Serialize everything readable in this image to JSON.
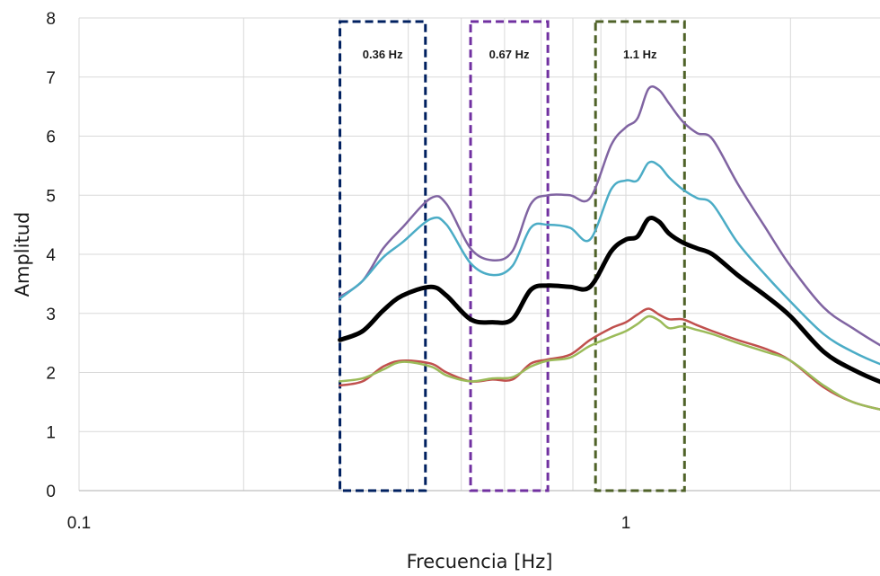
{
  "chart_data": {
    "type": "line",
    "xlabel": "Frecuencia [Hz]",
    "ylabel": "Amplitud",
    "xscale": "log",
    "xlim": [
      0.1,
      3.3
    ],
    "ylim": [
      0,
      8
    ],
    "y_ticks": [
      "0",
      "1",
      "2",
      "3",
      "4",
      "5",
      "6",
      "7",
      "8"
    ],
    "x_tick_labels": [
      {
        "value": 0.1,
        "label": "0.1"
      },
      {
        "value": 1,
        "label": "1"
      }
    ],
    "grid": true,
    "legend": "none",
    "series": [
      {
        "color": "#8064a2",
        "width": 2.5,
        "x": [
          0.3,
          0.33,
          0.36,
          0.39,
          0.44,
          0.47,
          0.52,
          0.57,
          0.62,
          0.67,
          0.72,
          0.79,
          0.86,
          0.94,
          1.0,
          1.05,
          1.1,
          1.15,
          1.2,
          1.27,
          1.35,
          1.44,
          1.6,
          1.8,
          2.0,
          2.3,
          2.6,
          3.0,
          3.3
        ],
        "y": [
          3.28,
          3.55,
          4.1,
          4.45,
          4.95,
          4.85,
          4.1,
          3.9,
          4.05,
          4.85,
          5.0,
          5.0,
          4.95,
          5.85,
          6.15,
          6.3,
          6.8,
          6.78,
          6.55,
          6.25,
          6.05,
          5.95,
          5.2,
          4.45,
          3.8,
          3.1,
          2.75,
          2.4,
          2.25
        ]
      },
      {
        "color": "#4bacc6",
        "width": 2.5,
        "x": [
          0.3,
          0.33,
          0.36,
          0.39,
          0.44,
          0.47,
          0.52,
          0.57,
          0.62,
          0.67,
          0.72,
          0.79,
          0.86,
          0.94,
          1.0,
          1.05,
          1.1,
          1.15,
          1.2,
          1.27,
          1.35,
          1.44,
          1.6,
          1.8,
          2.0,
          2.3,
          2.6,
          3.0,
          3.3
        ],
        "y": [
          3.25,
          3.55,
          3.95,
          4.2,
          4.6,
          4.5,
          3.85,
          3.65,
          3.8,
          4.45,
          4.5,
          4.45,
          4.25,
          5.1,
          5.25,
          5.25,
          5.55,
          5.5,
          5.3,
          5.1,
          4.95,
          4.85,
          4.2,
          3.65,
          3.2,
          2.65,
          2.35,
          2.1,
          2.0
        ]
      },
      {
        "color": "#000000",
        "width": 5,
        "x": [
          0.3,
          0.33,
          0.36,
          0.39,
          0.44,
          0.47,
          0.52,
          0.57,
          0.62,
          0.67,
          0.72,
          0.79,
          0.86,
          0.94,
          1.0,
          1.05,
          1.1,
          1.15,
          1.2,
          1.27,
          1.35,
          1.44,
          1.6,
          1.8,
          2.0,
          2.3,
          2.6,
          3.0,
          3.3
        ],
        "y": [
          2.55,
          2.7,
          3.05,
          3.3,
          3.45,
          3.3,
          2.9,
          2.85,
          2.9,
          3.4,
          3.47,
          3.45,
          3.45,
          4.05,
          4.25,
          4.3,
          4.6,
          4.55,
          4.35,
          4.2,
          4.1,
          4.0,
          3.65,
          3.3,
          2.95,
          2.35,
          2.05,
          1.8,
          1.7
        ]
      },
      {
        "color": "#c0504d",
        "width": 2.5,
        "x": [
          0.3,
          0.33,
          0.36,
          0.39,
          0.44,
          0.47,
          0.52,
          0.57,
          0.62,
          0.67,
          0.72,
          0.79,
          0.86,
          0.94,
          1.0,
          1.05,
          1.1,
          1.15,
          1.2,
          1.27,
          1.35,
          1.44,
          1.6,
          1.8,
          2.0,
          2.3,
          2.6,
          3.0,
          3.3
        ],
        "y": [
          1.78,
          1.85,
          2.1,
          2.2,
          2.15,
          2.0,
          1.85,
          1.88,
          1.88,
          2.15,
          2.22,
          2.3,
          2.55,
          2.75,
          2.85,
          2.98,
          3.08,
          2.98,
          2.9,
          2.9,
          2.8,
          2.7,
          2.55,
          2.4,
          2.2,
          1.75,
          1.5,
          1.35,
          1.3
        ]
      },
      {
        "color": "#9bbb59",
        "width": 2.5,
        "x": [
          0.3,
          0.33,
          0.36,
          0.39,
          0.44,
          0.47,
          0.52,
          0.57,
          0.62,
          0.67,
          0.72,
          0.79,
          0.86,
          0.94,
          1.0,
          1.05,
          1.1,
          1.15,
          1.2,
          1.27,
          1.35,
          1.44,
          1.6,
          1.8,
          2.0,
          2.3,
          2.6,
          3.0,
          3.3
        ],
        "y": [
          1.85,
          1.9,
          2.05,
          2.18,
          2.1,
          1.95,
          1.85,
          1.9,
          1.92,
          2.1,
          2.2,
          2.25,
          2.45,
          2.6,
          2.7,
          2.82,
          2.95,
          2.88,
          2.75,
          2.78,
          2.72,
          2.65,
          2.5,
          2.35,
          2.2,
          1.78,
          1.5,
          1.35,
          1.3
        ]
      }
    ],
    "annotations": [
      {
        "label": "0.36 Hz",
        "color": "#002060",
        "x_range": [
          0.3,
          0.43
        ],
        "y_range": [
          0,
          8
        ]
      },
      {
        "label": "0.67 Hz",
        "color": "#7030a0",
        "x_range": [
          0.52,
          0.72
        ],
        "y_range": [
          0,
          8
        ]
      },
      {
        "label": "1.1 Hz",
        "color": "#4f6228",
        "x_range": [
          0.88,
          1.28
        ],
        "y_range": [
          0,
          8
        ]
      }
    ]
  }
}
